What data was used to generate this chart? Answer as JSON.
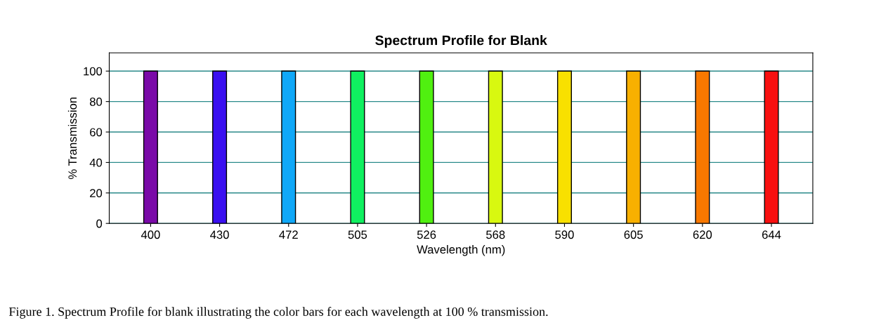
{
  "chart_data": {
    "type": "bar",
    "title": "Spectrum Profile for Blank",
    "xlabel": "Wavelength (nm)",
    "ylabel": "% Transmission",
    "categories": [
      "400",
      "430",
      "472",
      "505",
      "526",
      "568",
      "590",
      "605",
      "620",
      "644"
    ],
    "values": [
      100,
      100,
      100,
      100,
      100,
      100,
      100,
      100,
      100,
      100
    ],
    "colors": [
      "#7a0aa8",
      "#3a10f0",
      "#10a8f8",
      "#10f060",
      "#50f010",
      "#d8f810",
      "#f8e000",
      "#f8b000",
      "#f87800",
      "#f81010"
    ],
    "ylim": [
      0,
      112
    ],
    "yticks": [
      0,
      20,
      40,
      60,
      80,
      100
    ],
    "grid": "y",
    "annotations": [
      "Figure 1. Spectrum Profile for blank illustrating the color bars for each wavelength at 100 % transmission."
    ]
  }
}
